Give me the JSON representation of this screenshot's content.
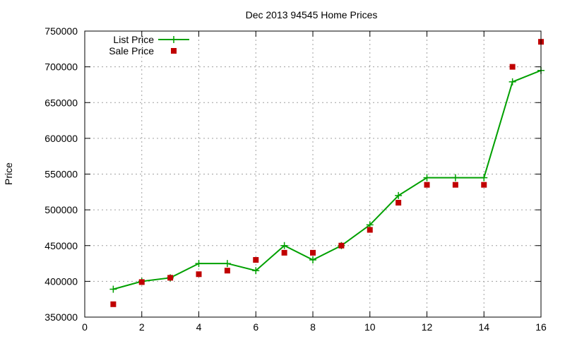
{
  "chart_data": {
    "type": "line",
    "title": "Dec 2013 94545 Home Prices",
    "xlabel": "",
    "ylabel": "Price",
    "xlim": [
      0,
      16
    ],
    "ylim": [
      350000,
      750000
    ],
    "xticks": [
      0,
      2,
      4,
      6,
      8,
      10,
      12,
      14,
      16
    ],
    "yticks": [
      350000,
      400000,
      450000,
      500000,
      550000,
      600000,
      650000,
      700000,
      750000
    ],
    "grid": true,
    "legend_position": "top-left",
    "series": [
      {
        "name": "List Price",
        "style": "line+cross",
        "color": "#00a000",
        "x": [
          1,
          2,
          3,
          4,
          5,
          6,
          7,
          8,
          9,
          10,
          11,
          12,
          13,
          14,
          15,
          16
        ],
        "y": [
          389000,
          400000,
          405000,
          425000,
          425000,
          415000,
          450000,
          430000,
          450000,
          479000,
          520000,
          545000,
          545000,
          545000,
          679000,
          695000
        ]
      },
      {
        "name": "Sale Price",
        "style": "square-points",
        "color": "#c00000",
        "x": [
          1,
          2,
          3,
          4,
          5,
          6,
          7,
          8,
          9,
          10,
          11,
          12,
          13,
          14,
          15,
          16
        ],
        "y": [
          368000,
          399000,
          405000,
          410000,
          415000,
          430000,
          440000,
          440000,
          450000,
          472000,
          510000,
          535000,
          535000,
          535000,
          700000,
          735000
        ]
      }
    ]
  }
}
